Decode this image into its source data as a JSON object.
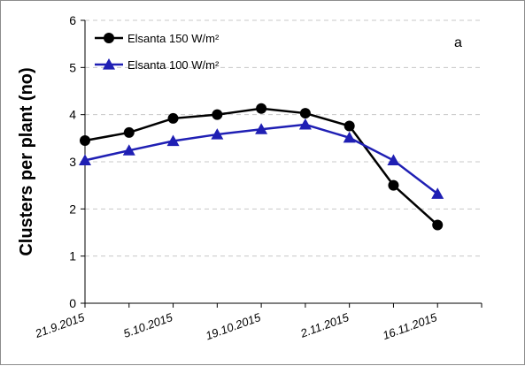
{
  "chart_data": {
    "type": "line",
    "title": "",
    "xlabel": "",
    "ylabel": "Clusters per plant (no)",
    "annotation": "a",
    "ylim": [
      0,
      6
    ],
    "yticks": [
      0,
      1,
      2,
      3,
      4,
      5,
      6
    ],
    "xlim": [
      "2015-09-21",
      "2015-11-23"
    ],
    "xticks": [
      "21.9.2015",
      "5.10.2015",
      "19.10.2015",
      "2.11.2015",
      "16.11.2015"
    ],
    "grid": "horizontal-dashed",
    "legend_position": "top-left",
    "series": [
      {
        "name": "Elsanta 150 W/m²",
        "color": "#000000",
        "marker": "circle",
        "x": [
          "2015-09-21",
          "2015-09-28",
          "2015-10-05",
          "2015-10-12",
          "2015-10-19",
          "2015-10-26",
          "2015-11-02",
          "2015-11-09",
          "2015-11-16"
        ],
        "y": [
          3.45,
          3.62,
          3.92,
          4.0,
          4.13,
          4.03,
          3.76,
          2.5,
          1.66
        ]
      },
      {
        "name": "Elsanta 100 W/m²",
        "color": "#1f1fb4",
        "marker": "triangle",
        "x": [
          "2015-09-21",
          "2015-09-28",
          "2015-10-05",
          "2015-10-12",
          "2015-10-19",
          "2015-10-26",
          "2015-11-02",
          "2015-11-09",
          "2015-11-16"
        ],
        "y": [
          3.03,
          3.24,
          3.44,
          3.58,
          3.69,
          3.79,
          3.51,
          3.03,
          2.32
        ]
      }
    ]
  }
}
